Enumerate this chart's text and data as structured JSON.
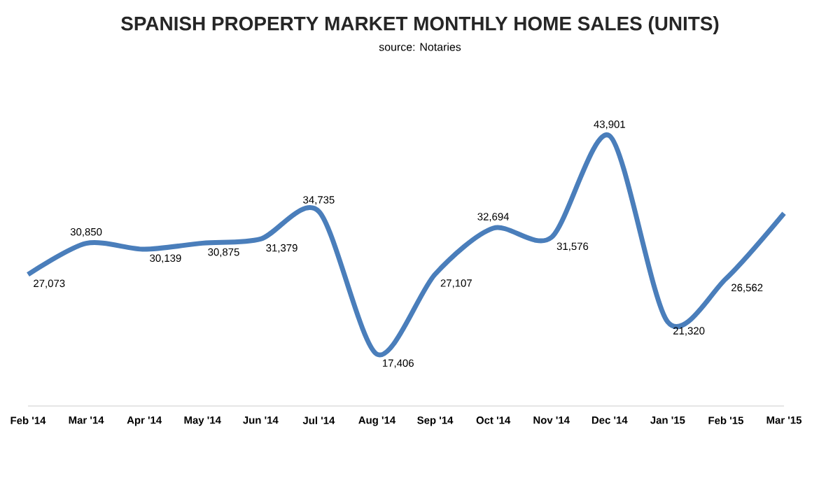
{
  "chart_data": {
    "type": "line",
    "title": "SPANISH PROPERTY MARKET MONTHLY HOME SALES (UNITS)",
    "subtitle": "source: Notaries",
    "categories": [
      "Feb '14",
      "Mar '14",
      "Apr '14",
      "May '14",
      "Jun '14",
      "Jul '14",
      "Aug '14",
      "Sep '14",
      "Oct '14",
      "Nov '14",
      "Dec '14",
      "Jan '15",
      "Feb '15",
      "Mar '15"
    ],
    "series": [
      {
        "color": "#4a7ebb",
        "values": [
          27073,
          30850,
          30139,
          30875,
          31379,
          34735,
          17406,
          27107,
          32694,
          31576,
          43901,
          21320,
          26562,
          34500
        ],
        "value_labels": [
          "27,073",
          "30,850",
          "30,139",
          "30,875",
          "31,379",
          "34,735",
          "17,406",
          "27,107",
          "32,694",
          "31,576",
          "43,901",
          "21,320",
          "26,562",
          null
        ]
      }
    ],
    "marker": "none"
  }
}
